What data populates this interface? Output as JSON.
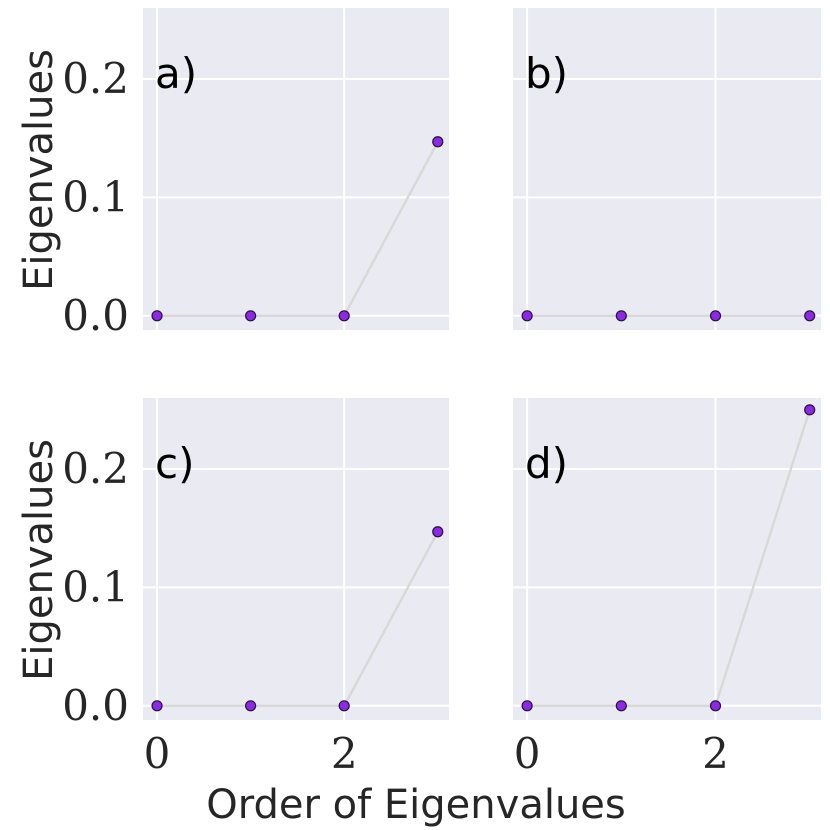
{
  "chart_data": {
    "type": "scatter",
    "xlabel": "Order of Eigenvalues",
    "ylabel": "Eigenvalues",
    "xlim": [
      -0.15,
      3.12
    ],
    "ylim": [
      -0.012,
      0.26
    ],
    "x_ticks": [
      0,
      2
    ],
    "y_ticks": [
      0.0,
      0.1,
      0.2
    ],
    "x_tick_labels": [
      "0",
      "2"
    ],
    "y_tick_labels": [
      "0.0",
      "0.1",
      "0.2"
    ],
    "grid": true,
    "point_color": "#8a2be2",
    "line_color": "#d8d8d8",
    "panels": [
      {
        "label": "a)",
        "x": [
          0,
          1,
          2,
          3
        ],
        "y": [
          0.0,
          0.0,
          0.0,
          0.147
        ]
      },
      {
        "label": "b)",
        "x": [
          0,
          1,
          2,
          3
        ],
        "y": [
          0.0,
          0.0,
          0.0,
          0.0
        ]
      },
      {
        "label": "c)",
        "x": [
          0,
          1,
          2,
          3
        ],
        "y": [
          0.0,
          0.0,
          0.0,
          0.147
        ]
      },
      {
        "label": "d)",
        "x": [
          0,
          1,
          2,
          3
        ],
        "y": [
          0.0,
          0.0,
          0.0,
          0.25
        ]
      }
    ]
  }
}
